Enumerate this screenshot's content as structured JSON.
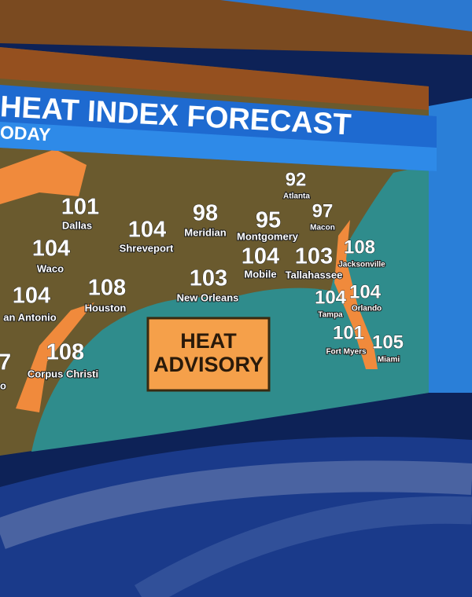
{
  "header": {
    "title": "HEAT INDEX FORECAST",
    "subtitle": "ODAY"
  },
  "cities": [
    {
      "name": "Atlanta",
      "value": 92
    },
    {
      "name": "Macon",
      "value": 97
    },
    {
      "name": "Dallas",
      "value": 101
    },
    {
      "name": "Meridian",
      "value": 98
    },
    {
      "name": "Montgomery",
      "value": 95
    },
    {
      "name": "Shreveport",
      "value": 104
    },
    {
      "name": "Waco",
      "value": 104
    },
    {
      "name": "Mobile",
      "value": 104
    },
    {
      "name": "Tallahassee",
      "value": 103
    },
    {
      "name": "Jacksonville",
      "value": 108
    },
    {
      "name": "New Orleans",
      "value": 103
    },
    {
      "name": "Houston",
      "value": 108
    },
    {
      "name": "an Antonio",
      "value": 104
    },
    {
      "name": "Tampa",
      "value": 104
    },
    {
      "name": "Orlando",
      "value": 104
    },
    {
      "name": "Fort Myers",
      "value": 101
    },
    {
      "name": "Miami",
      "value": 105
    },
    {
      "name": "Corpus Christi",
      "value": 108
    },
    {
      "name": "o",
      "value": 7
    }
  ],
  "advisory": {
    "line1": "HEAT",
    "line2": "ADVISORY"
  }
}
